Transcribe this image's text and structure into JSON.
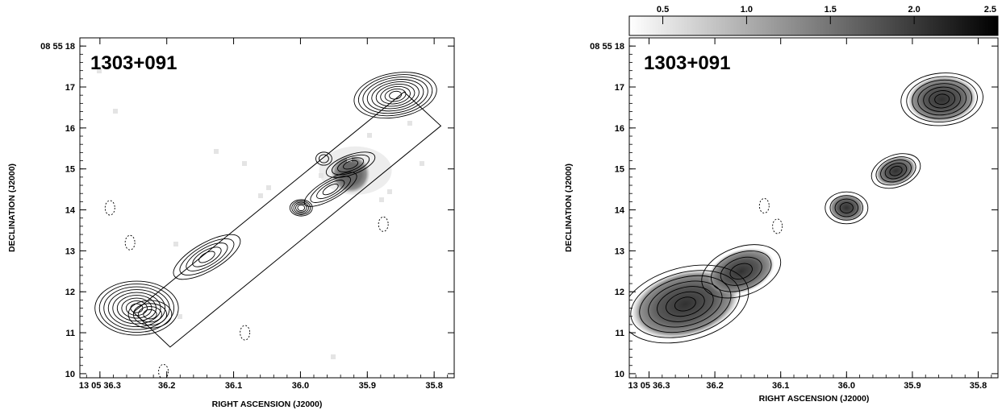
{
  "chart_data": [
    {
      "type": "contour",
      "panel": "left",
      "source_label": "1303+091",
      "xlabel": "RIGHT ASCENSION (J2000)",
      "ylabel": "DECLINATION (J2000)",
      "x_axis_prefix": "13 05",
      "y_axis_prefix": "08 55",
      "xlim": [
        36.33,
        35.77
      ],
      "ylim": [
        9.9,
        18.2
      ],
      "x_ticks": [
        36.3,
        36.2,
        36.1,
        36.0,
        35.9,
        35.8
      ],
      "x_tick_labels": [
        "13 05 36.3",
        "36.2",
        "36.1",
        "36.0",
        "35.9",
        "35.8"
      ],
      "y_ticks": [
        10,
        11,
        12,
        13,
        14,
        15,
        16,
        17,
        18
      ],
      "y_tick_labels": [
        "10",
        "11",
        "12",
        "13",
        "14",
        "15",
        "16",
        "17",
        "08 55 18"
      ],
      "components": [
        {
          "ra": 36.245,
          "dec": 11.6,
          "levels": 9,
          "sx": 0.05,
          "sy": 0.62,
          "rot": 0
        },
        {
          "ra": 36.225,
          "dec": 11.45,
          "levels": 4,
          "sx": 0.025,
          "sy": 0.3,
          "rot": 0
        },
        {
          "ra": 36.14,
          "dec": 12.85,
          "levels": 5,
          "sx": 0.045,
          "sy": 0.3,
          "rot": -30
        },
        {
          "ra": 35.999,
          "dec": 14.05,
          "levels": 5,
          "sx": 0.012,
          "sy": 0.16,
          "rot": 0
        },
        {
          "ra": 35.955,
          "dec": 14.5,
          "levels": 4,
          "sx": 0.035,
          "sy": 0.2,
          "rot": -30
        },
        {
          "ra": 35.925,
          "dec": 15.1,
          "levels": 4,
          "sx": 0.03,
          "sy": 0.2,
          "rot": -20
        },
        {
          "ra": 35.858,
          "dec": 16.8,
          "levels": 9,
          "sx": 0.05,
          "sy": 0.5,
          "rot": -10
        },
        {
          "ra": 35.965,
          "dec": 15.25,
          "levels": 2,
          "sx": 0.008,
          "sy": 0.12,
          "rot": 0
        }
      ],
      "grey_blob": {
        "ra": 35.925,
        "dec": 14.88
      },
      "slit_box_corners": [
        [
          36.195,
          10.65
        ],
        [
          35.79,
          16.05
        ],
        [
          35.845,
          16.88
        ],
        [
          36.25,
          11.5
        ]
      ],
      "negative_contours": [
        {
          "ra": 36.255,
          "dec": 13.2
        },
        {
          "ra": 36.285,
          "dec": 14.05
        },
        {
          "ra": 36.083,
          "dec": 11.0
        },
        {
          "ra": 35.876,
          "dec": 13.65
        },
        {
          "ra": 36.205,
          "dec": 10.05
        }
      ]
    },
    {
      "type": "contour",
      "panel": "right",
      "source_label": "1303+091",
      "xlabel": "RIGHT ASCENSION (J2000)",
      "ylabel": "DECLINATION (J2000)",
      "xlim": [
        36.33,
        35.77
      ],
      "ylim": [
        9.9,
        18.2
      ],
      "x_ticks": [
        36.3,
        36.2,
        36.1,
        36.0,
        35.9,
        35.8
      ],
      "x_tick_labels": [
        "13 05 36.3",
        "36.2",
        "36.1",
        "36.0",
        "35.9",
        "35.8"
      ],
      "y_ticks": [
        10,
        11,
        12,
        13,
        14,
        15,
        16,
        17,
        18
      ],
      "y_tick_labels": [
        "10",
        "11",
        "12",
        "13",
        "14",
        "15",
        "16",
        "17",
        "08 55 18"
      ],
      "colorbar": {
        "min": 0.3,
        "max": 2.5,
        "ticks": [
          0.5,
          1.0,
          1.5,
          2.0,
          2.5
        ],
        "tick_labels": [
          "0.5",
          "1.0",
          "1.5",
          "2.0",
          "2.5"
        ]
      },
      "components": [
        {
          "ra": 36.245,
          "dec": 11.7,
          "levels": 7,
          "sx": 0.08,
          "sy": 0.85,
          "rot": -15
        },
        {
          "ra": 36.16,
          "dec": 12.5,
          "levels": 4,
          "sx": 0.05,
          "sy": 0.55,
          "rot": -20
        },
        {
          "ra": 36.0,
          "dec": 14.05,
          "levels": 4,
          "sx": 0.025,
          "sy": 0.35,
          "rot": 0
        },
        {
          "ra": 35.925,
          "dec": 14.95,
          "levels": 5,
          "sx": 0.03,
          "sy": 0.35,
          "rot": -20
        },
        {
          "ra": 35.855,
          "dec": 16.7,
          "levels": 7,
          "sx": 0.05,
          "sy": 0.6,
          "rot": -5
        }
      ],
      "negative_contours": [
        {
          "ra": 36.125,
          "dec": 14.1
        },
        {
          "ra": 36.105,
          "dec": 13.6
        }
      ]
    }
  ]
}
